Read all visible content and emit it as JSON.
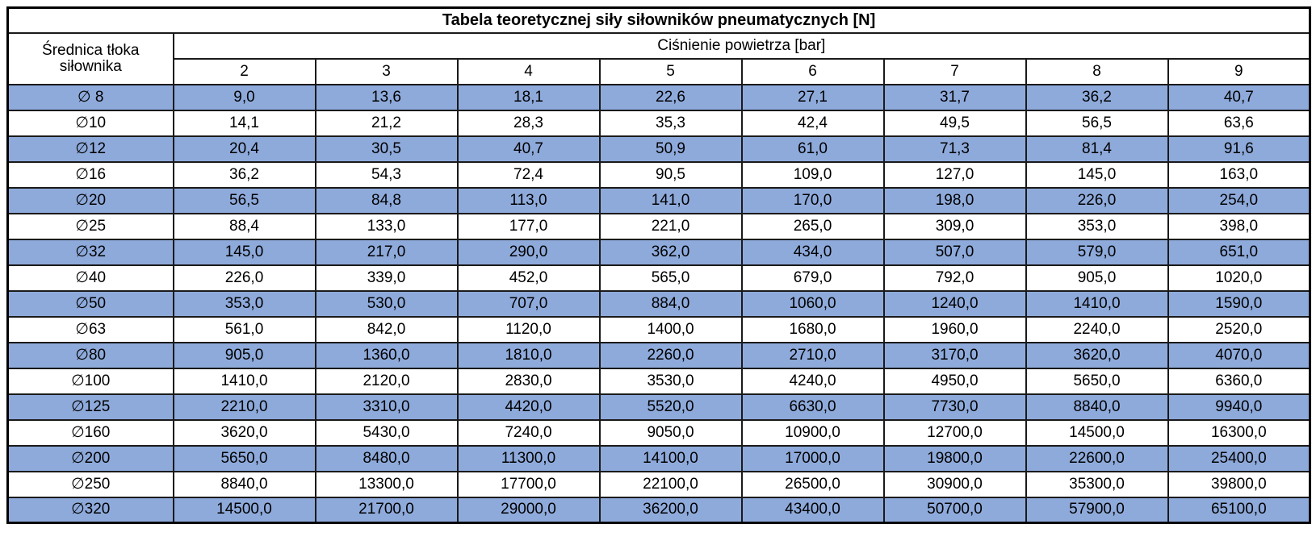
{
  "colors": {
    "row_shaded": "#8EAADB",
    "row_plain": "#FFFFFF",
    "border": "#000000",
    "text": "#000000"
  },
  "chart_data": {
    "type": "table",
    "title": "Tabela teoretycznej siły siłowników pneumatycznych [N]",
    "row_header_label": "Średnica tłoka siłownika",
    "column_group_label": "Ciśnienie powietrza [bar]",
    "pressure_bar": [
      "2",
      "3",
      "4",
      "5",
      "6",
      "7",
      "8",
      "9"
    ],
    "rows": [
      {
        "diameter": "∅ 8",
        "values": [
          "9,0",
          "13,6",
          "18,1",
          "22,6",
          "27,1",
          "31,7",
          "36,2",
          "40,7"
        ]
      },
      {
        "diameter": "∅10",
        "values": [
          "14,1",
          "21,2",
          "28,3",
          "35,3",
          "42,4",
          "49,5",
          "56,5",
          "63,6"
        ]
      },
      {
        "diameter": "∅12",
        "values": [
          "20,4",
          "30,5",
          "40,7",
          "50,9",
          "61,0",
          "71,3",
          "81,4",
          "91,6"
        ]
      },
      {
        "diameter": "∅16",
        "values": [
          "36,2",
          "54,3",
          "72,4",
          "90,5",
          "109,0",
          "127,0",
          "145,0",
          "163,0"
        ]
      },
      {
        "diameter": "∅20",
        "values": [
          "56,5",
          "84,8",
          "113,0",
          "141,0",
          "170,0",
          "198,0",
          "226,0",
          "254,0"
        ]
      },
      {
        "diameter": "∅25",
        "values": [
          "88,4",
          "133,0",
          "177,0",
          "221,0",
          "265,0",
          "309,0",
          "353,0",
          "398,0"
        ]
      },
      {
        "diameter": "∅32",
        "values": [
          "145,0",
          "217,0",
          "290,0",
          "362,0",
          "434,0",
          "507,0",
          "579,0",
          "651,0"
        ]
      },
      {
        "diameter": "∅40",
        "values": [
          "226,0",
          "339,0",
          "452,0",
          "565,0",
          "679,0",
          "792,0",
          "905,0",
          "1020,0"
        ]
      },
      {
        "diameter": "∅50",
        "values": [
          "353,0",
          "530,0",
          "707,0",
          "884,0",
          "1060,0",
          "1240,0",
          "1410,0",
          "1590,0"
        ]
      },
      {
        "diameter": "∅63",
        "values": [
          "561,0",
          "842,0",
          "1120,0",
          "1400,0",
          "1680,0",
          "1960,0",
          "2240,0",
          "2520,0"
        ]
      },
      {
        "diameter": "∅80",
        "values": [
          "905,0",
          "1360,0",
          "1810,0",
          "2260,0",
          "2710,0",
          "3170,0",
          "3620,0",
          "4070,0"
        ]
      },
      {
        "diameter": "∅100",
        "values": [
          "1410,0",
          "2120,0",
          "2830,0",
          "3530,0",
          "4240,0",
          "4950,0",
          "5650,0",
          "6360,0"
        ]
      },
      {
        "diameter": "∅125",
        "values": [
          "2210,0",
          "3310,0",
          "4420,0",
          "5520,0",
          "6630,0",
          "7730,0",
          "8840,0",
          "9940,0"
        ]
      },
      {
        "diameter": "∅160",
        "values": [
          "3620,0",
          "5430,0",
          "7240,0",
          "9050,0",
          "10900,0",
          "12700,0",
          "14500,0",
          "16300,0"
        ]
      },
      {
        "diameter": "∅200",
        "values": [
          "5650,0",
          "8480,0",
          "11300,0",
          "14100,0",
          "17000,0",
          "19800,0",
          "22600,0",
          "25400,0"
        ]
      },
      {
        "diameter": "∅250",
        "values": [
          "8840,0",
          "13300,0",
          "17700,0",
          "22100,0",
          "26500,0",
          "30900,0",
          "35300,0",
          "39800,0"
        ]
      },
      {
        "diameter": "∅320",
        "values": [
          "14500,0",
          "21700,0",
          "29000,0",
          "36200,0",
          "43400,0",
          "50700,0",
          "57900,0",
          "65100,0"
        ]
      }
    ]
  }
}
